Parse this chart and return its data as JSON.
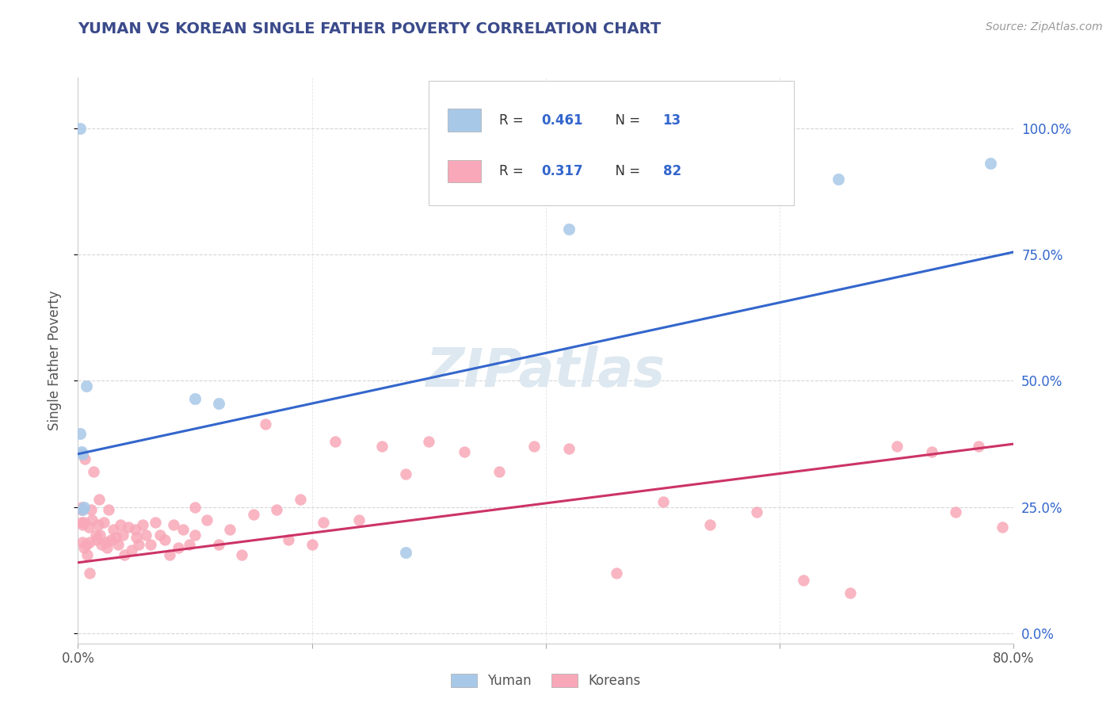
{
  "title": "YUMAN VS KOREAN SINGLE FATHER POVERTY CORRELATION CHART",
  "source_text": "Source: ZipAtlas.com",
  "ylabel": "Single Father Poverty",
  "legend_yuman_r": "R = 0.461",
  "legend_yuman_n": "N = 13",
  "legend_korean_r": "R = 0.317",
  "legend_korean_n": "N = 82",
  "legend_label_yuman": "Yuman",
  "legend_label_korean": "Koreans",
  "yuman_color": "#a8c8e8",
  "korean_color": "#f8a8b8",
  "blue_line_color": "#3366cc",
  "pink_line_color": "#cc3366",
  "title_color": "#3a4a8a",
  "watermark_color": "#dde8f0",
  "r_value_color": "#3366cc",
  "background_color": "#ffffff",
  "grid_color": "#cccccc",
  "xlim": [
    0.0,
    0.8
  ],
  "ylim": [
    -0.02,
    1.1
  ],
  "yuman_x": [
    0.002,
    0.002,
    0.003,
    0.004,
    0.004,
    0.005,
    0.007,
    0.1,
    0.12,
    0.28,
    0.42,
    0.65,
    0.78
  ],
  "yuman_y": [
    1.0,
    0.395,
    0.36,
    0.355,
    0.245,
    0.25,
    0.49,
    0.465,
    0.455,
    0.16,
    0.8,
    0.9,
    0.93
  ],
  "korean_x": [
    0.003,
    0.003,
    0.003,
    0.004,
    0.004,
    0.005,
    0.006,
    0.007,
    0.008,
    0.009,
    0.01,
    0.011,
    0.012,
    0.013,
    0.015,
    0.016,
    0.017,
    0.018,
    0.019,
    0.02,
    0.022,
    0.024,
    0.026,
    0.028,
    0.03,
    0.032,
    0.034,
    0.036,
    0.038,
    0.04,
    0.043,
    0.046,
    0.049,
    0.052,
    0.055,
    0.058,
    0.062,
    0.066,
    0.07,
    0.074,
    0.078,
    0.082,
    0.086,
    0.09,
    0.095,
    0.1,
    0.11,
    0.12,
    0.13,
    0.14,
    0.15,
    0.16,
    0.17,
    0.18,
    0.19,
    0.2,
    0.21,
    0.22,
    0.24,
    0.26,
    0.28,
    0.3,
    0.33,
    0.36,
    0.39,
    0.42,
    0.46,
    0.5,
    0.54,
    0.58,
    0.62,
    0.66,
    0.7,
    0.73,
    0.75,
    0.77,
    0.79,
    0.005,
    0.01,
    0.025,
    0.05,
    0.1
  ],
  "korean_y": [
    0.245,
    0.25,
    0.22,
    0.215,
    0.18,
    0.22,
    0.345,
    0.175,
    0.155,
    0.21,
    0.18,
    0.245,
    0.225,
    0.32,
    0.195,
    0.185,
    0.215,
    0.265,
    0.195,
    0.175,
    0.22,
    0.18,
    0.245,
    0.185,
    0.205,
    0.19,
    0.175,
    0.215,
    0.195,
    0.155,
    0.21,
    0.165,
    0.205,
    0.175,
    0.215,
    0.195,
    0.175,
    0.22,
    0.195,
    0.185,
    0.155,
    0.215,
    0.17,
    0.205,
    0.175,
    0.195,
    0.225,
    0.175,
    0.205,
    0.155,
    0.235,
    0.415,
    0.245,
    0.185,
    0.265,
    0.175,
    0.22,
    0.38,
    0.225,
    0.37,
    0.315,
    0.38,
    0.36,
    0.32,
    0.37,
    0.365,
    0.12,
    0.26,
    0.215,
    0.24,
    0.105,
    0.08,
    0.37,
    0.36,
    0.24,
    0.37,
    0.21,
    0.17,
    0.12,
    0.17,
    0.19,
    0.25
  ],
  "yuman_line_x": [
    0.0,
    0.8
  ],
  "yuman_line_y_start": 0.355,
  "yuman_line_y_end": 0.755,
  "korean_line_x": [
    0.0,
    0.8
  ],
  "korean_line_y_start": 0.14,
  "korean_line_y_end": 0.375,
  "yticks": [
    0.0,
    0.25,
    0.5,
    0.75,
    1.0
  ],
  "ytick_labels": [
    "0.0%",
    "25.0%",
    "50.0%",
    "75.0%",
    "100.0%"
  ],
  "xtick_positions": [
    0.0,
    0.2,
    0.4,
    0.6,
    0.8
  ],
  "xtick_labels": [
    "0.0%",
    "",
    "",
    "",
    "80.0%"
  ]
}
